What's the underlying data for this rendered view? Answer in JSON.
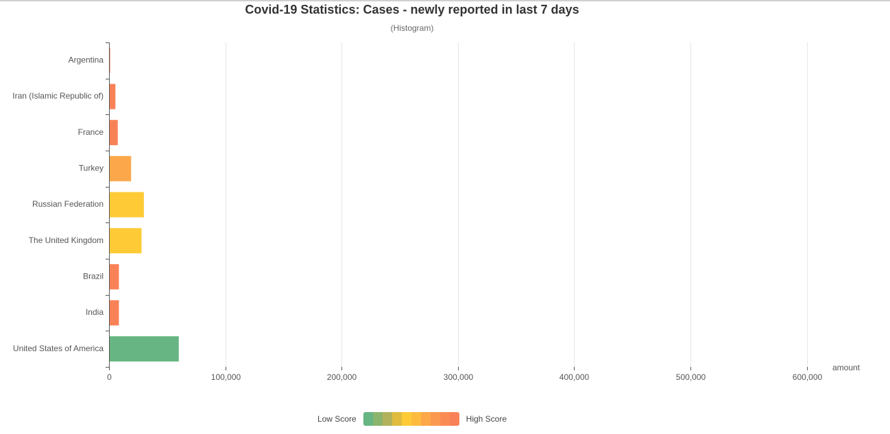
{
  "chart_data": {
    "type": "bar",
    "orientation": "horizontal",
    "title": "Covid-19 Statistics: Cases - newly reported in last 7 days",
    "subtitle": "(Histogram)",
    "xlabel": "amount",
    "ylabel": "",
    "xlim": [
      0,
      615000
    ],
    "x_ticks": [
      0,
      100000,
      200000,
      300000,
      400000,
      500000,
      600000
    ],
    "x_tick_labels": [
      "0",
      "100,000",
      "200,000",
      "300,000",
      "400,000",
      "500,000",
      "600,000"
    ],
    "grid": true,
    "categories": [
      "Argentina",
      "Iran (Islamic Republic of)",
      "France",
      "Turkey",
      "Russian Federation",
      "The United Kingdom",
      "Brazil",
      "India",
      "United States of America"
    ],
    "values": [
      1000,
      5500,
      7500,
      19000,
      30000,
      28000,
      8500,
      8500,
      60000
    ],
    "bar_colors": [
      "#f98157",
      "#f98157",
      "#f98157",
      "#fca84a",
      "#fecb37",
      "#fecb37",
      "#f98157",
      "#f98157",
      "#66b582"
    ],
    "legend": {
      "low_label": "Low Score",
      "high_label": "High Score",
      "placement": "bottom-center",
      "colors": [
        "#66b582",
        "#8bb46d",
        "#b2b25c",
        "#e0bb3f",
        "#fecb37",
        "#fdbc3e",
        "#fca84a",
        "#fb9950",
        "#fa8b54",
        "#f98157"
      ]
    }
  }
}
